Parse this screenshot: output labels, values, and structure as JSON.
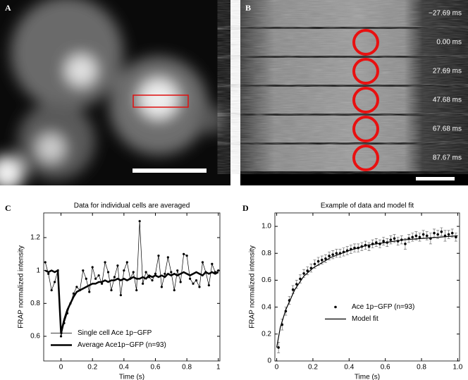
{
  "panels": {
    "labels": [
      "A",
      "B",
      "C",
      "D"
    ],
    "timestamps": [
      "−27.69 ms",
      "0.00 ms",
      "27.69 ms",
      "47.68 ms",
      "67.68 ms",
      "87.67 ms"
    ]
  },
  "chart_data": [
    {
      "type": "line",
      "title": "Data for individual cells are averaged",
      "x_label": "Time (s)",
      "y_label": "FRAP normalized intensity",
      "x": [
        -0.1,
        -0.08,
        -0.06,
        -0.04,
        -0.02,
        0,
        0.02,
        0.04,
        0.06,
        0.08,
        0.1,
        0.12,
        0.14,
        0.16,
        0.18,
        0.2,
        0.22,
        0.24,
        0.26,
        0.28,
        0.3,
        0.32,
        0.34,
        0.36,
        0.38,
        0.4,
        0.42,
        0.44,
        0.46,
        0.48,
        0.5,
        0.52,
        0.54,
        0.56,
        0.58,
        0.6,
        0.62,
        0.64,
        0.66,
        0.68,
        0.7,
        0.72,
        0.74,
        0.76,
        0.78,
        0.8,
        0.82,
        0.84,
        0.86,
        0.88,
        0.9,
        0.92,
        0.94,
        0.96,
        0.98,
        1.0
      ],
      "series": [
        {
          "name": "Single cell Ace 1p−GFP",
          "color": "#000000",
          "marker": true,
          "width": 0.7,
          "values": [
            1.05,
            0.98,
            0.88,
            0.93,
            1.0,
            0.6,
            0.68,
            0.74,
            0.8,
            0.86,
            0.9,
            0.88,
            1.0,
            0.95,
            0.87,
            1.02,
            0.95,
            0.97,
            0.92,
            1.05,
            0.99,
            0.88,
            0.96,
            1.03,
            0.85,
            1.0,
            1.05,
            0.95,
            0.99,
            0.88,
            1.3,
            0.92,
            0.99,
            0.96,
            0.94,
            0.98,
            1.09,
            0.9,
            0.98,
            1.08,
            0.99,
            0.88,
            1.0,
            0.93,
            1.1,
            1.09,
            0.95,
            0.92,
            0.94,
            0.9,
            1.05,
            0.99,
            0.91,
            1.04,
            0.99,
            1.0
          ]
        },
        {
          "name": "Average Ace1p−GFP (n=93)",
          "color": "#000000",
          "marker": false,
          "width": 2.5,
          "values": [
            1.0,
            0.99,
            1.0,
            0.99,
            1.0,
            0.62,
            0.7,
            0.76,
            0.8,
            0.84,
            0.87,
            0.88,
            0.89,
            0.9,
            0.91,
            0.92,
            0.92,
            0.93,
            0.93,
            0.94,
            0.93,
            0.94,
            0.94,
            0.95,
            0.94,
            0.95,
            0.94,
            0.95,
            0.96,
            0.95,
            0.95,
            0.96,
            0.95,
            0.97,
            0.96,
            0.97,
            0.96,
            0.97,
            0.96,
            0.98,
            0.97,
            0.98,
            0.97,
            0.98,
            0.99,
            0.98,
            0.97,
            0.98,
            0.99,
            0.98,
            0.97,
            0.99,
            0.98,
            0.99,
            0.98,
            0.99
          ]
        }
      ],
      "xlim": [
        -0.11,
        1.01
      ],
      "xticks": [
        0,
        0.2,
        0.4,
        0.6,
        0.8,
        1
      ],
      "ylim": [
        0.45,
        1.35
      ],
      "yticks": [
        0.6,
        0.8,
        1,
        1.2
      ],
      "legend": "lower left"
    },
    {
      "type": "scatter",
      "title": "Example of data and model fit",
      "x_label": "Time (s)",
      "y_label": "FRAP normalized intensity",
      "series": [
        {
          "name": "Ace 1p−GFP (n=93)",
          "color": "#000000",
          "x": [
            0.01,
            0.03,
            0.05,
            0.07,
            0.09,
            0.11,
            0.13,
            0.15,
            0.17,
            0.19,
            0.21,
            0.23,
            0.25,
            0.27,
            0.29,
            0.31,
            0.33,
            0.35,
            0.37,
            0.39,
            0.41,
            0.43,
            0.45,
            0.47,
            0.49,
            0.51,
            0.53,
            0.55,
            0.57,
            0.59,
            0.61,
            0.63,
            0.65,
            0.67,
            0.69,
            0.71,
            0.73,
            0.75,
            0.77,
            0.79,
            0.81,
            0.83,
            0.85,
            0.87,
            0.89,
            0.91,
            0.93,
            0.95,
            0.97,
            0.99
          ],
          "values": [
            0.1,
            0.27,
            0.37,
            0.45,
            0.53,
            0.57,
            0.61,
            0.65,
            0.67,
            0.69,
            0.72,
            0.74,
            0.75,
            0.76,
            0.78,
            0.79,
            0.8,
            0.8,
            0.81,
            0.82,
            0.83,
            0.84,
            0.84,
            0.85,
            0.86,
            0.85,
            0.87,
            0.88,
            0.87,
            0.89,
            0.88,
            0.9,
            0.91,
            0.89,
            0.9,
            0.87,
            0.91,
            0.92,
            0.93,
            0.92,
            0.94,
            0.93,
            0.91,
            0.95,
            0.94,
            0.96,
            0.93,
            0.94,
            0.95,
            0.92
          ],
          "errors": [
            0.04,
            0.04,
            0.03,
            0.03,
            0.03,
            0.03,
            0.03,
            0.03,
            0.03,
            0.03,
            0.03,
            0.03,
            0.03,
            0.03,
            0.03,
            0.03,
            0.03,
            0.03,
            0.03,
            0.03,
            0.03,
            0.03,
            0.03,
            0.03,
            0.03,
            0.03,
            0.03,
            0.03,
            0.03,
            0.03,
            0.03,
            0.03,
            0.03,
            0.03,
            0.03,
            0.04,
            0.03,
            0.03,
            0.03,
            0.03,
            0.03,
            0.03,
            0.04,
            0.03,
            0.03,
            0.03,
            0.04,
            0.03,
            0.03,
            0.03
          ]
        },
        {
          "name": "Model fit",
          "color": "#000000",
          "kind": "line",
          "x": [
            0,
            0.02,
            0.05,
            0.1,
            0.15,
            0.2,
            0.3,
            0.4,
            0.5,
            0.6,
            0.7,
            0.8,
            0.9,
            1.0
          ],
          "values": [
            0.1,
            0.25,
            0.38,
            0.53,
            0.63,
            0.69,
            0.77,
            0.82,
            0.86,
            0.88,
            0.9,
            0.91,
            0.92,
            0.93
          ]
        }
      ],
      "xlim": [
        -0.01,
        1.01
      ],
      "xticks": [
        0,
        0.2,
        0.4,
        0.6,
        0.8,
        {
          "value": 1,
          "label": "1.0"
        }
      ],
      "ylim": [
        0,
        1.1
      ],
      "yticks": [
        0,
        0.2,
        0.4,
        0.6,
        0.8,
        {
          "value": 1,
          "label": "1.0"
        }
      ],
      "legend": "center"
    }
  ]
}
